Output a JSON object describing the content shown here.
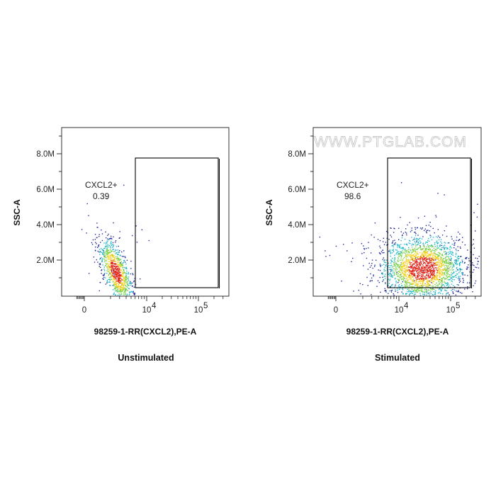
{
  "watermark": "WWW.PTGLAB.COM",
  "chart_data": [
    {
      "type": "scatter",
      "title": "Unstimulated",
      "xlabel": "98259-1-RR(CXCL2),PE-A",
      "ylabel": "SSC-A",
      "x_ticks": [
        "0",
        "10",
        "10"
      ],
      "x_tick_exponents": [
        "",
        "4",
        "5"
      ],
      "y_ticks": [
        "2.0M",
        "4.0M",
        "6.0M",
        "8.0M"
      ],
      "y_tick_values": [
        2000000,
        4000000,
        6000000,
        8000000
      ],
      "gate": {
        "name": "CXCL2+",
        "percent": "0.39"
      },
      "population": {
        "center_x_decade": 3.4,
        "center_y": 2700000,
        "density": "high, low-CXCL2 cluster"
      }
    },
    {
      "type": "scatter",
      "title": "Stimulated",
      "xlabel": "98259-1-RR(CXCL2),PE-A",
      "ylabel": "SSC-A",
      "x_ticks": [
        "0",
        "10",
        "10"
      ],
      "x_tick_exponents": [
        "",
        "4",
        "5"
      ],
      "y_ticks": [
        "2.0M",
        "4.0M",
        "6.0M",
        "8.0M"
      ],
      "y_tick_values": [
        2000000,
        4000000,
        6000000,
        8000000
      ],
      "gate": {
        "name": "CXCL2+",
        "percent": "98.6"
      },
      "population": {
        "center_x_decade": 4.45,
        "center_y": 3100000,
        "density": "high, CXCL2-positive cluster"
      }
    }
  ],
  "colors": {
    "density_low": "#1f2a9a",
    "density_mid": "#1fb7c8",
    "density_midhigh": "#7bd24a",
    "density_high": "#f4d020",
    "density_peak": "#e2261c",
    "axis": "#000000",
    "gate": "#000000"
  }
}
